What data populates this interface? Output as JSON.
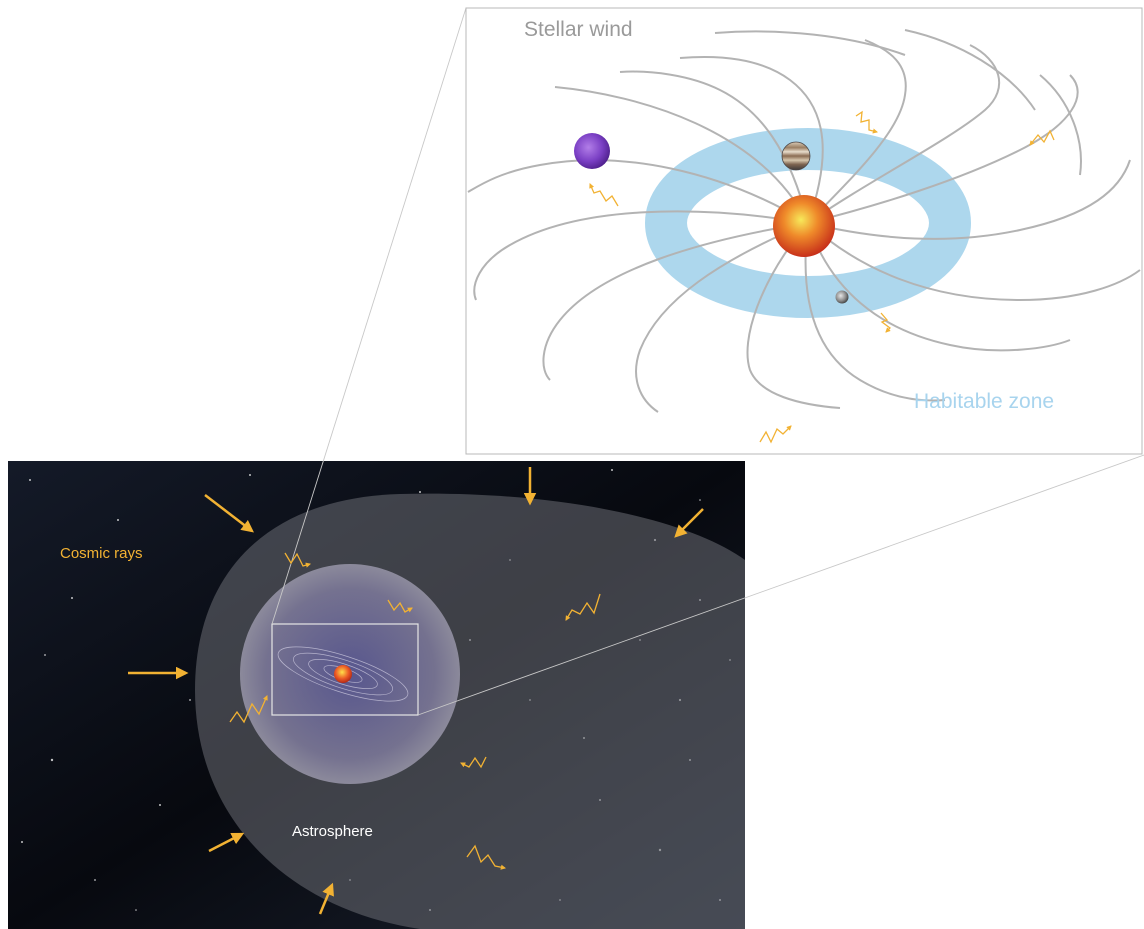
{
  "labels": {
    "stellar_wind": "Stellar wind",
    "habitable_zone": "Habitable zone",
    "cosmic_rays": "Cosmic rays",
    "astrosphere": "Astrosphere"
  },
  "colors": {
    "wind_lines": "#b3b3b3",
    "habitable_zone": "#8fc8e8",
    "cosmic_ray_arrows": "#f2b233",
    "star": "#d9461c",
    "space": "#0a0d14",
    "astrosphere_fill": "#5a5d63",
    "inner_bubble": "#8a88a8"
  },
  "icons": [
    "star-icon",
    "purple-planet-icon",
    "gas-giant-icon",
    "earth-like-planet-icon",
    "cosmic-ray-arrow-icon",
    "zigzag-ray-icon"
  ]
}
